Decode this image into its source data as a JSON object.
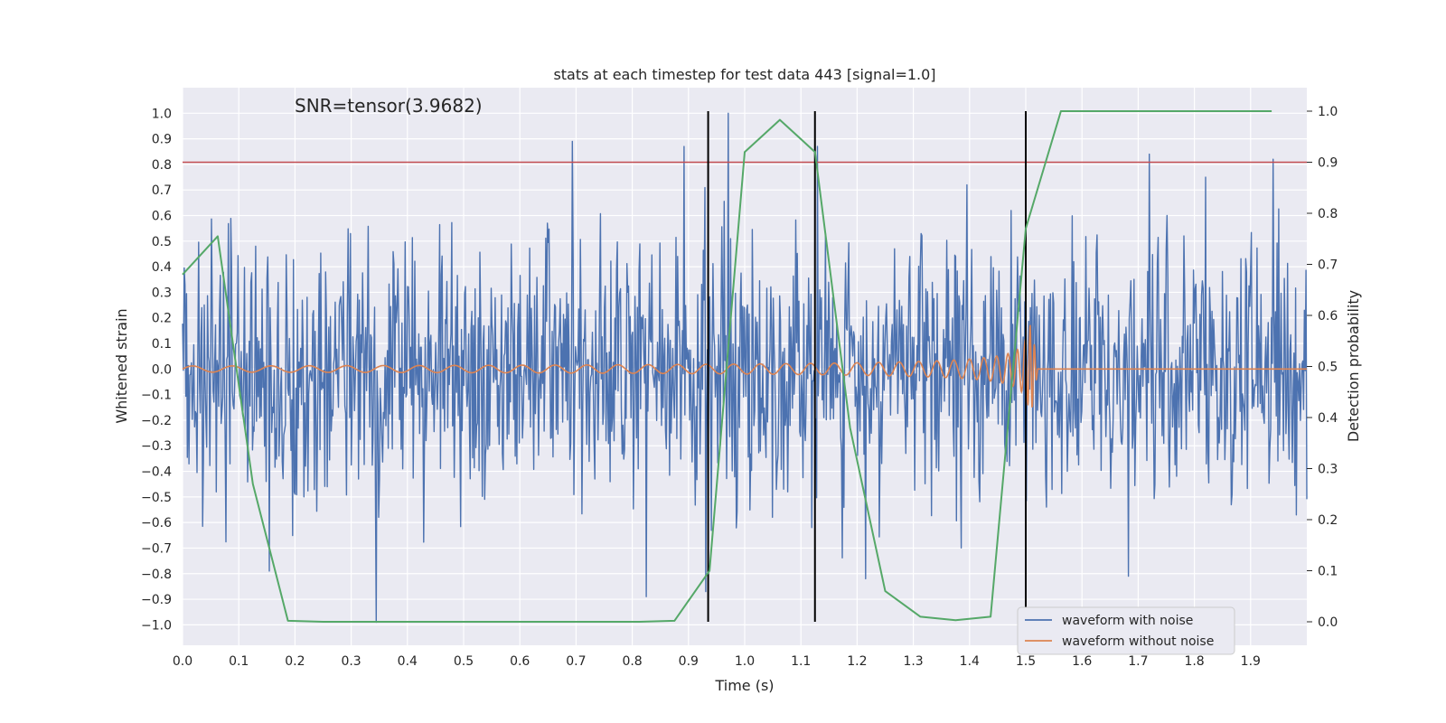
{
  "chart_data": {
    "type": "line",
    "title": "stats at each timestep for test data 443 [signal=1.0]",
    "annotation": "SNR=tensor(3.9682)",
    "xlabel": "Time (s)",
    "ylabel": "Whitened strain",
    "y2label": "Detection probability",
    "xlim": [
      0.0,
      2.0
    ],
    "ylim": [
      -1.08,
      1.1
    ],
    "y2lim": [
      -0.046,
      1.046
    ],
    "x_ticks": [
      "0.0",
      "0.1",
      "0.2",
      "0.3",
      "0.4",
      "0.5",
      "0.6",
      "0.7",
      "0.8",
      "0.9",
      "1.0",
      "1.1",
      "1.2",
      "1.3",
      "1.4",
      "1.5",
      "1.6",
      "1.7",
      "1.8",
      "1.9"
    ],
    "y_ticks": [
      "1.0",
      "0.9",
      "0.8",
      "0.7",
      "0.6",
      "0.5",
      "0.4",
      "0.3",
      "0.2",
      "0.1",
      "0.0",
      "−0.1",
      "−0.2",
      "−0.3",
      "−0.4",
      "−0.5",
      "−0.6",
      "−0.7",
      "−0.8",
      "−0.9",
      "−1.0"
    ],
    "y2_ticks": [
      "1.0",
      "0.9",
      "0.8",
      "0.7",
      "0.6",
      "0.5",
      "0.4",
      "0.3",
      "0.2",
      "0.1",
      "0.0"
    ],
    "grid": true,
    "legend_position": "bottom-right",
    "threshold": {
      "y2": 0.9,
      "color": "#c44e52"
    },
    "vertical_lines": {
      "x": [
        0.935,
        1.125,
        1.5
      ],
      "color": "#000000"
    },
    "series": [
      {
        "name": "waveform with noise",
        "axis": "left",
        "color": "#4c72b0",
        "style": "noise",
        "x_range": [
          0.0,
          2.0
        ],
        "typical_amplitude": 0.25,
        "peaks": [
          {
            "x": 0.694,
            "y": 0.89
          },
          {
            "x": 0.892,
            "y": 0.87
          },
          {
            "x": 0.97,
            "y": 1.0
          },
          {
            "x": 1.13,
            "y": 0.87
          },
          {
            "x": 1.72,
            "y": 0.84
          },
          {
            "x": 1.94,
            "y": 0.82
          },
          {
            "x": 1.395,
            "y": 0.72
          },
          {
            "x": 1.82,
            "y": 0.75
          },
          {
            "x": 0.345,
            "y": -0.99
          },
          {
            "x": 0.825,
            "y": -0.89
          },
          {
            "x": 0.93,
            "y": -0.87
          },
          {
            "x": 0.155,
            "y": -0.79
          },
          {
            "x": 1.12,
            "y": -0.62
          },
          {
            "x": 1.682,
            "y": -0.81
          },
          {
            "x": 1.215,
            "y": -0.82
          }
        ]
      },
      {
        "name": "waveform without noise",
        "axis": "left",
        "color": "#dd8452",
        "style": "chirp",
        "x_range": [
          0.0,
          2.0
        ],
        "start_amplitude": 0.012,
        "peak_amplitude": 0.24,
        "merger_x": 1.51,
        "start_frequency_hz": 14,
        "end_frequency_hz": 220
      },
      {
        "name": "Detection probability",
        "axis": "right",
        "color": "#55a868",
        "x": [
          0.0,
          0.0625,
          0.125,
          0.1875,
          0.25,
          0.3125,
          0.375,
          0.4375,
          0.5,
          0.5625,
          0.625,
          0.6875,
          0.75,
          0.8125,
          0.875,
          0.9375,
          1.0,
          1.0625,
          1.125,
          1.1875,
          1.25,
          1.3125,
          1.375,
          1.4375,
          1.5,
          1.5625,
          1.625,
          1.6875,
          1.75,
          1.8125,
          1.875,
          1.9375
        ],
        "y": [
          0.68,
          0.755,
          0.27,
          0.002,
          0.0,
          0.0,
          0.0,
          0.0,
          0.0,
          0.0,
          0.0,
          0.0,
          0.0,
          0.0,
          0.002,
          0.1,
          0.92,
          0.983,
          0.92,
          0.38,
          0.06,
          0.01,
          0.003,
          0.01,
          0.77,
          1.0,
          1.0,
          1.0,
          1.0,
          1.0,
          1.0,
          1.0
        ]
      }
    ]
  }
}
